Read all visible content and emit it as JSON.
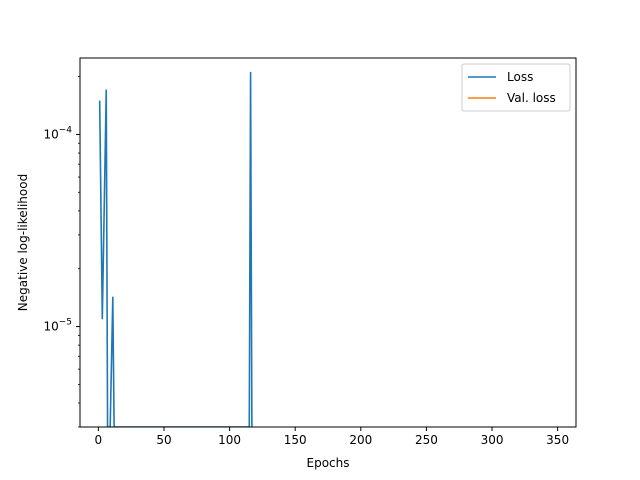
{
  "chart_data": {
    "type": "line",
    "title": "",
    "xlabel": "Epochs",
    "ylabel": "Negative log-likelihood",
    "yscale": "log",
    "xlim": [
      -14,
      364
    ],
    "ylim": [
      3e-06,
      0.00025
    ],
    "xticks": [
      0,
      50,
      100,
      150,
      200,
      250,
      300,
      350
    ],
    "xtick_labels": [
      "0",
      "50",
      "100",
      "150",
      "200",
      "250",
      "300",
      "350"
    ],
    "yticks_major": [
      1e-05,
      0.0001
    ],
    "ytick_base": "10",
    "ytick_exponents": [
      "−5",
      "−4"
    ],
    "yticks_minor": [
      3e-06,
      4e-06,
      5e-06,
      6e-06,
      7e-06,
      8e-06,
      9e-06,
      2e-05,
      3e-05,
      4e-05,
      5e-05,
      6e-05,
      7e-05,
      8e-05,
      9e-05,
      0.0002
    ],
    "grid": false,
    "legend_position": "top-right",
    "series": [
      {
        "name": "Loss",
        "color": "#1f77b4",
        "x": [
          1,
          3,
          6,
          7,
          8,
          9,
          11,
          12,
          13,
          115,
          116,
          117
        ],
        "y": [
          0.00015,
          1.1e-05,
          0.00017,
          3e-06,
          3e-06,
          3e-06,
          1.42e-05,
          3e-06,
          3e-06,
          3e-06,
          0.00021,
          3e-06
        ]
      },
      {
        "name": "Val. loss",
        "color": "#ff7f0e",
        "x": [],
        "y": []
      }
    ]
  }
}
